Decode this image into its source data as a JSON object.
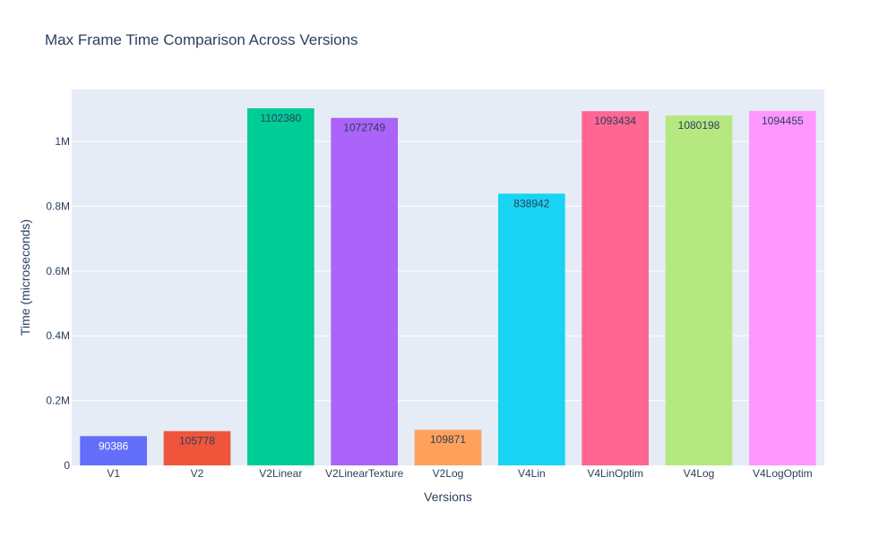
{
  "chart_data": {
    "type": "bar",
    "title": "Max Frame Time Comparison Across Versions",
    "xlabel": "Versions",
    "ylabel": "Time (microseconds)",
    "ylim": [
      0,
      1160400
    ],
    "yticks": [
      0,
      200000,
      400000,
      600000,
      800000,
      1000000
    ],
    "ytick_labels": [
      "0",
      "0.2M",
      "0.4M",
      "0.6M",
      "0.8M",
      "1M"
    ],
    "categories": [
      "V1",
      "V2",
      "V2Linear",
      "V2LinearTexture",
      "V2Log",
      "V4Lin",
      "V4LinOptim",
      "V4Log",
      "V4LogOptim"
    ],
    "values": [
      90386,
      105778,
      1102380,
      1072749,
      109871,
      838942,
      1093434,
      1080198,
      1094455
    ],
    "data_labels": [
      "90386",
      "105778",
      "1102380",
      "1072749",
      "109871",
      "838942",
      "1093434",
      "1080198",
      "1094455"
    ],
    "colors": [
      "#636efa",
      "#EF553B",
      "#00cc96",
      "#ab63fa",
      "#FFA15A",
      "#19d3f3",
      "#FF6692",
      "#B6E880",
      "#FF97FF"
    ],
    "label_colors": [
      "#ffffff",
      "#2a3f5f",
      "#2a3f5f",
      "#2a3f5f",
      "#2a3f5f",
      "#2a3f5f",
      "#2a3f5f",
      "#2a3f5f",
      "#2a3f5f"
    ],
    "plot_bg": "#E5ECF6",
    "grid": true
  }
}
